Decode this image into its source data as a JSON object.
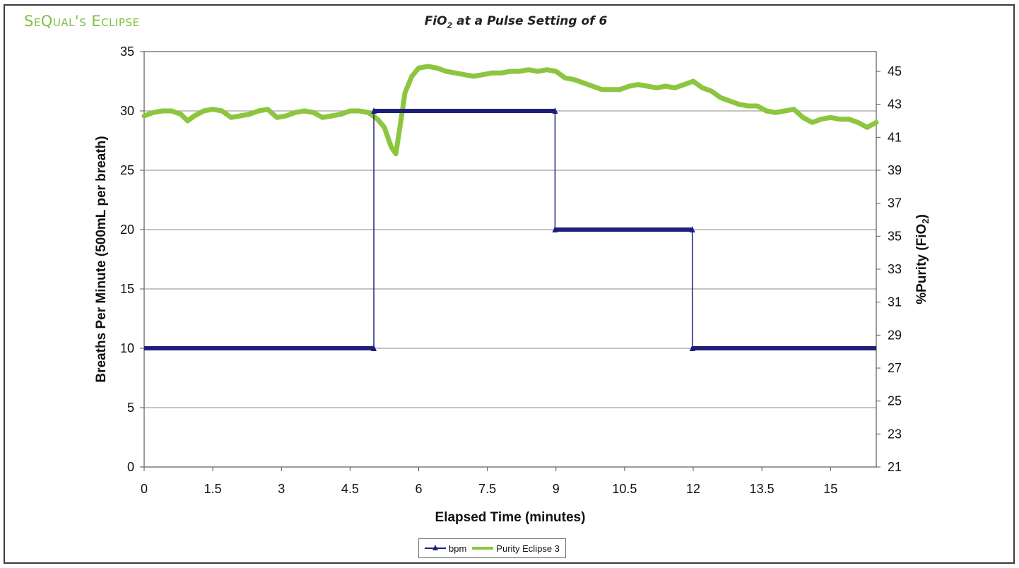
{
  "brand": "SeQual's Eclipse",
  "chart_data": {
    "type": "line",
    "title_main": "FiO",
    "title_sub": "2",
    "title_rest": " at a Pulse Setting of 6",
    "xlabel": "Elapsed Time (minutes)",
    "ylabel_left": "Breaths Per Minute (500mL per breath)",
    "ylabel_right_main": "%Purity (FiO",
    "ylabel_right_sub": "2",
    "ylabel_right_end": ")",
    "xlim": [
      0,
      16
    ],
    "ylim_left": [
      0,
      35
    ],
    "ylim_right": [
      21,
      46.2
    ],
    "x_ticks": [
      "0",
      "1.5",
      "3",
      "4.5",
      "6",
      "7.5",
      "9",
      "10.5",
      "12",
      "13.5",
      "15"
    ],
    "x_tick_values": [
      0,
      1.5,
      3,
      4.5,
      6,
      7.5,
      9,
      10.5,
      12,
      13.5,
      15
    ],
    "y_left_ticks": [
      "0",
      "5",
      "10",
      "15",
      "20",
      "25",
      "30",
      "35"
    ],
    "y_left_tick_values": [
      0,
      5,
      10,
      15,
      20,
      25,
      30,
      35
    ],
    "y_right_ticks": [
      "21",
      "23",
      "25",
      "27",
      "29",
      "31",
      "33",
      "35",
      "37",
      "39",
      "41",
      "43",
      "45"
    ],
    "y_right_tick_values": [
      21,
      23,
      25,
      27,
      29,
      31,
      33,
      35,
      37,
      39,
      41,
      43,
      45
    ],
    "grid": "horizontal",
    "legend_position": "bottom",
    "series": [
      {
        "name": "bpm",
        "axis": "left",
        "color": "#1f1f7a",
        "marker": "triangle",
        "x": [
          0,
          5.02,
          5.02,
          8.98,
          8.98,
          11.98,
          11.98,
          16
        ],
        "values": [
          10,
          10,
          30,
          30,
          20,
          20,
          10,
          10
        ]
      },
      {
        "name": "Purity Eclipse 3",
        "axis": "right",
        "color": "#8cc63f",
        "x": [
          0,
          0.2,
          0.4,
          0.6,
          0.8,
          0.95,
          1.1,
          1.3,
          1.5,
          1.7,
          1.9,
          2.1,
          2.3,
          2.5,
          2.7,
          2.9,
          3.1,
          3.3,
          3.5,
          3.7,
          3.9,
          4.1,
          4.3,
          4.5,
          4.7,
          4.9,
          5.1,
          5.25,
          5.4,
          5.5,
          5.6,
          5.7,
          5.85,
          6.0,
          6.2,
          6.4,
          6.6,
          6.8,
          7.0,
          7.2,
          7.4,
          7.6,
          7.8,
          8.0,
          8.2,
          8.4,
          8.6,
          8.8,
          9.0,
          9.2,
          9.4,
          9.6,
          9.8,
          10.0,
          10.2,
          10.4,
          10.6,
          10.8,
          11.0,
          11.2,
          11.4,
          11.6,
          11.8,
          12.0,
          12.2,
          12.4,
          12.6,
          12.8,
          13.0,
          13.2,
          13.4,
          13.6,
          13.8,
          14.0,
          14.2,
          14.4,
          14.6,
          14.8,
          15.0,
          15.2,
          15.4,
          15.6,
          15.8,
          16.0
        ],
        "values": [
          42.3,
          42.5,
          42.6,
          42.6,
          42.4,
          42.0,
          42.3,
          42.6,
          42.7,
          42.6,
          42.2,
          42.3,
          42.4,
          42.6,
          42.7,
          42.2,
          42.3,
          42.5,
          42.6,
          42.5,
          42.2,
          42.3,
          42.4,
          42.6,
          42.6,
          42.5,
          42.1,
          41.6,
          40.4,
          40.0,
          41.8,
          43.7,
          44.7,
          45.2,
          45.3,
          45.2,
          45.0,
          44.9,
          44.8,
          44.7,
          44.8,
          44.9,
          44.9,
          45.0,
          45.0,
          45.1,
          45.0,
          45.1,
          45.0,
          44.6,
          44.5,
          44.3,
          44.1,
          43.9,
          43.9,
          43.9,
          44.1,
          44.2,
          44.1,
          44.0,
          44.1,
          44.0,
          44.2,
          44.4,
          44.0,
          43.8,
          43.4,
          43.2,
          43.0,
          42.9,
          42.9,
          42.6,
          42.5,
          42.6,
          42.7,
          42.2,
          41.9,
          42.1,
          42.2,
          42.1,
          42.1,
          41.9,
          41.6,
          41.9
        ]
      }
    ]
  }
}
